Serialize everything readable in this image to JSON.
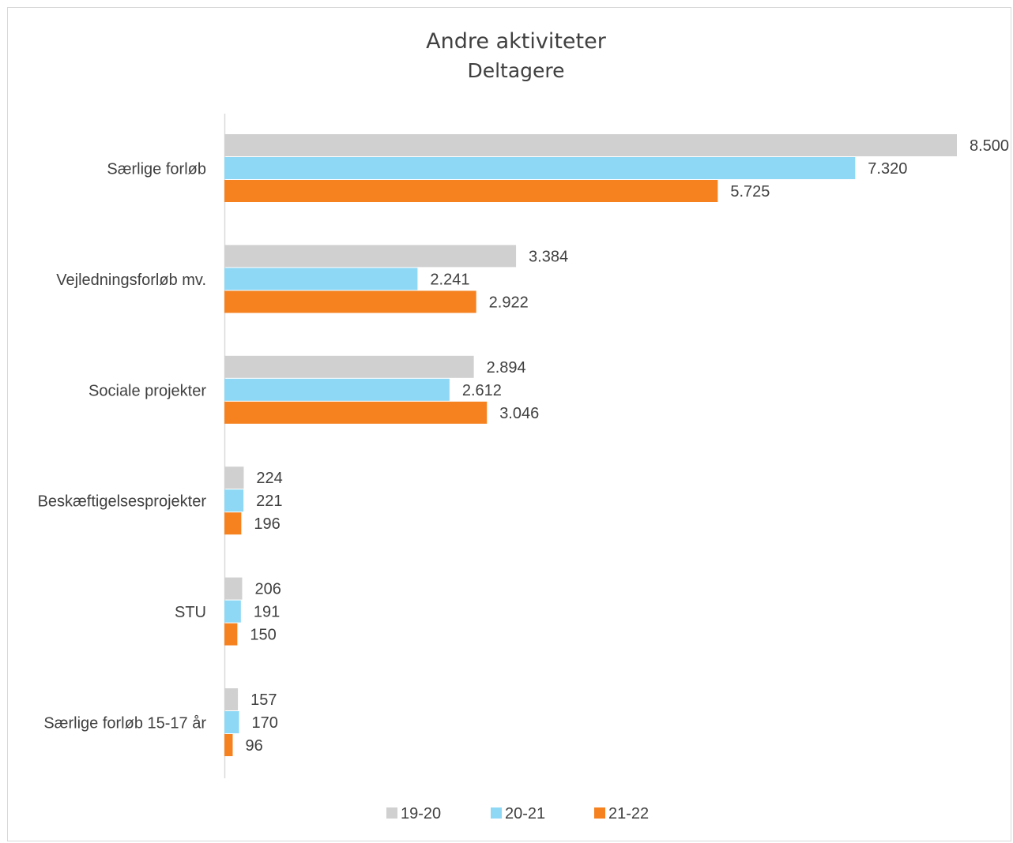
{
  "chart_data": {
    "type": "bar",
    "orientation": "horizontal",
    "title": "Andre aktiviteter",
    "subtitle": "Deltagere",
    "xlabel": "",
    "ylabel": "",
    "xlim": [
      0,
      8500
    ],
    "grid": false,
    "legend_position": "bottom",
    "categories": [
      "Særlige forløb",
      "Vejledningsforløb mv.",
      "Sociale projekter",
      "Beskæftigelsesprojekter",
      "STU",
      "Særlige forløb 15-17 år"
    ],
    "series": [
      {
        "name": "19-20",
        "color": "#d0d0d0",
        "values": [
          8500,
          3384,
          2894,
          224,
          206,
          157
        ],
        "labels": [
          "8.500",
          "3.384",
          "2.894",
          "224",
          "206",
          "157"
        ]
      },
      {
        "name": "20-21",
        "color": "#8ed8f5",
        "values": [
          7320,
          2241,
          2612,
          221,
          191,
          170
        ],
        "labels": [
          "7.320",
          "2.241",
          "2.612",
          "221",
          "191",
          "170"
        ]
      },
      {
        "name": "21-22",
        "color": "#f5821f",
        "values": [
          5725,
          2922,
          3046,
          196,
          150,
          96
        ],
        "labels": [
          "5.725",
          "2.922",
          "3.046",
          "196",
          "150",
          "96"
        ]
      }
    ]
  }
}
